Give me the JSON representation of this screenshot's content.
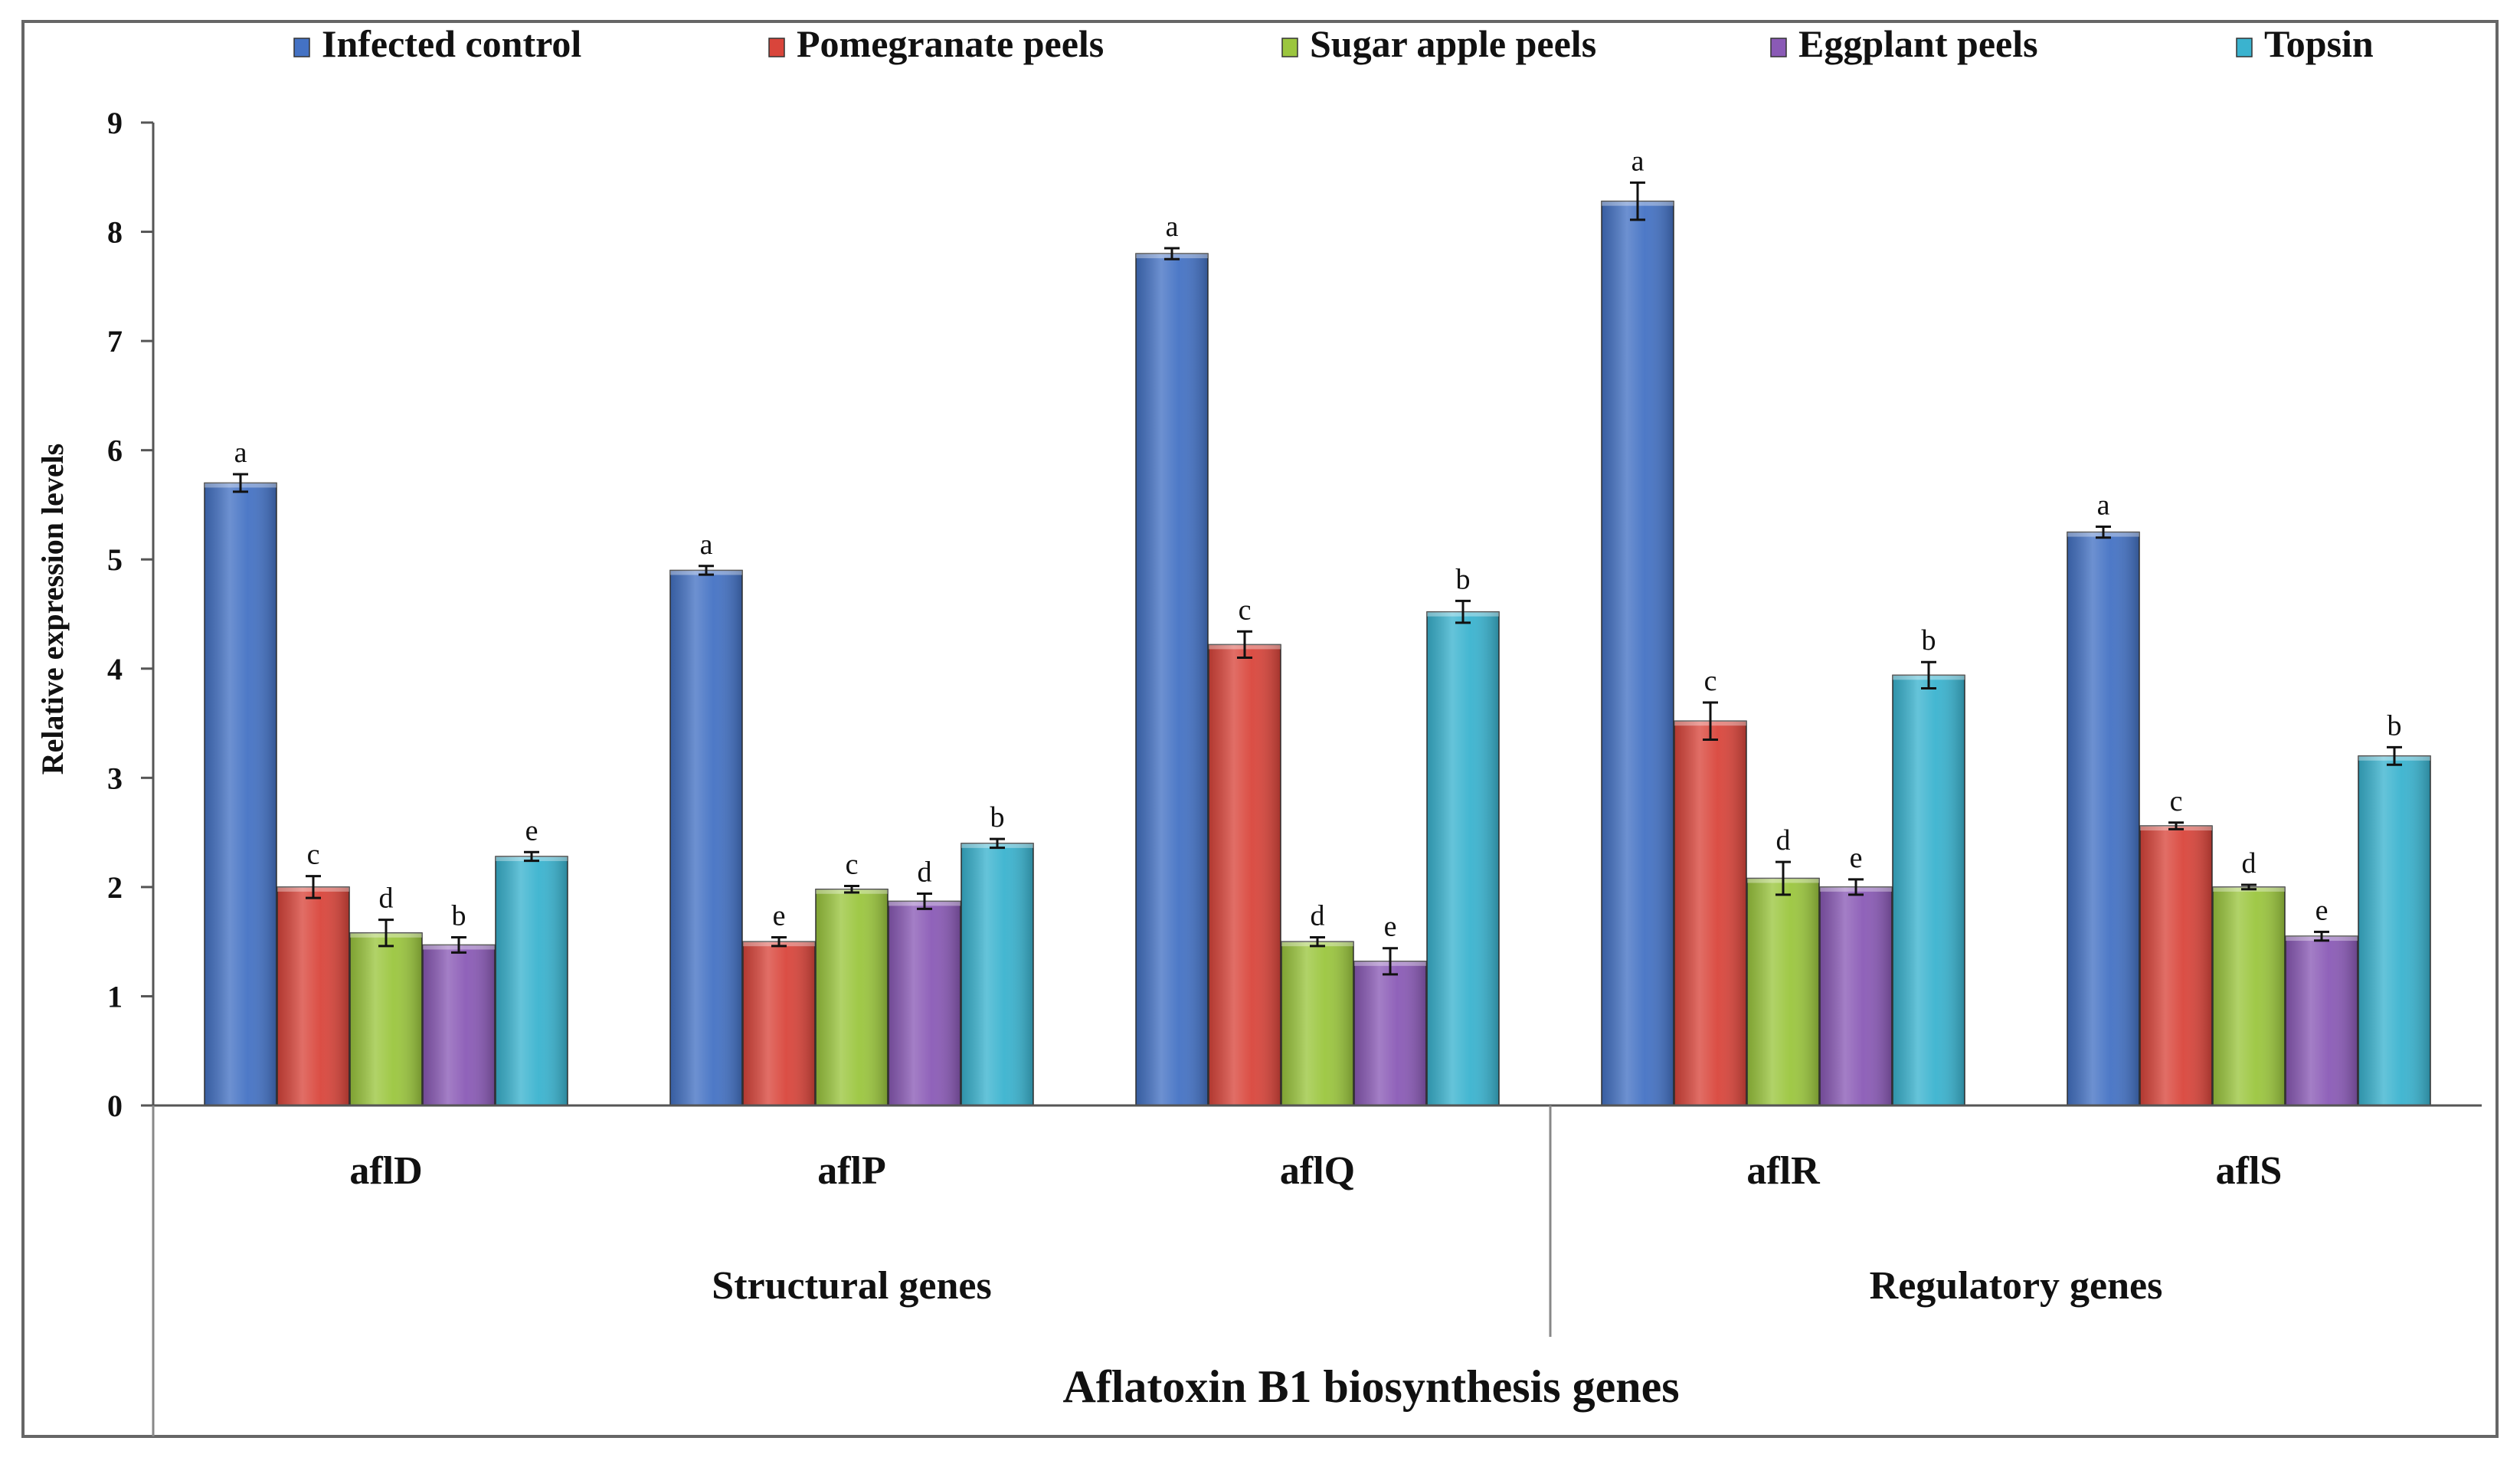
{
  "chart_data": {
    "type": "bar",
    "title": "",
    "ylabel": "Relative expression levels",
    "xlabel": "Aflatoxin B1 biosynthesis genes",
    "ylim": [
      0,
      9
    ],
    "yticks": [
      "0",
      "1",
      "2",
      "3",
      "4",
      "5",
      "6",
      "7",
      "8",
      "9"
    ],
    "categories": [
      "aflD",
      "aflP",
      "aflQ",
      "aflR",
      "aflS"
    ],
    "groups": [
      {
        "label": "Structural genes",
        "categories": [
          "aflD",
          "aflP",
          "aflQ"
        ]
      },
      {
        "label": "Regulatory genes",
        "categories": [
          "aflR",
          "aflS"
        ]
      }
    ],
    "legend_position": "top",
    "series": [
      {
        "name": "Infected control",
        "color": "#4472C4",
        "values": [
          5.7,
          4.9,
          7.8,
          8.28,
          5.25
        ],
        "errors": [
          0.08,
          0.04,
          0.05,
          0.17,
          0.05
        ],
        "labels": [
          "a",
          "a",
          "a",
          "a",
          "a"
        ]
      },
      {
        "name": "Pomegranate peels",
        "color": "#D9453B",
        "values": [
          2.0,
          1.5,
          4.22,
          3.52,
          2.56
        ],
        "errors": [
          0.1,
          0.04,
          0.12,
          0.17,
          0.03
        ],
        "labels": [
          "c",
          "e",
          "c",
          "c",
          "c"
        ]
      },
      {
        "name": "Sugar apple peels",
        "color": "#9BC63E",
        "values": [
          1.58,
          1.98,
          1.5,
          2.08,
          2.0
        ],
        "errors": [
          0.12,
          0.03,
          0.04,
          0.15,
          0.02
        ],
        "labels": [
          "d",
          "c",
          "d",
          "d",
          "d"
        ]
      },
      {
        "name": "Eggplant peels",
        "color": "#8A5AB6",
        "values": [
          1.47,
          1.87,
          1.32,
          2.0,
          1.55
        ],
        "errors": [
          0.07,
          0.07,
          0.12,
          0.07,
          0.04
        ],
        "labels": [
          "b",
          "d",
          "e",
          "e",
          "e"
        ]
      },
      {
        "name": "Topsin",
        "color": "#3AB3CF",
        "values": [
          2.28,
          2.4,
          4.52,
          3.94,
          3.2
        ],
        "errors": [
          0.04,
          0.04,
          0.1,
          0.12,
          0.08
        ],
        "labels": [
          "e",
          "b",
          "b",
          "b",
          "b"
        ]
      }
    ]
  }
}
